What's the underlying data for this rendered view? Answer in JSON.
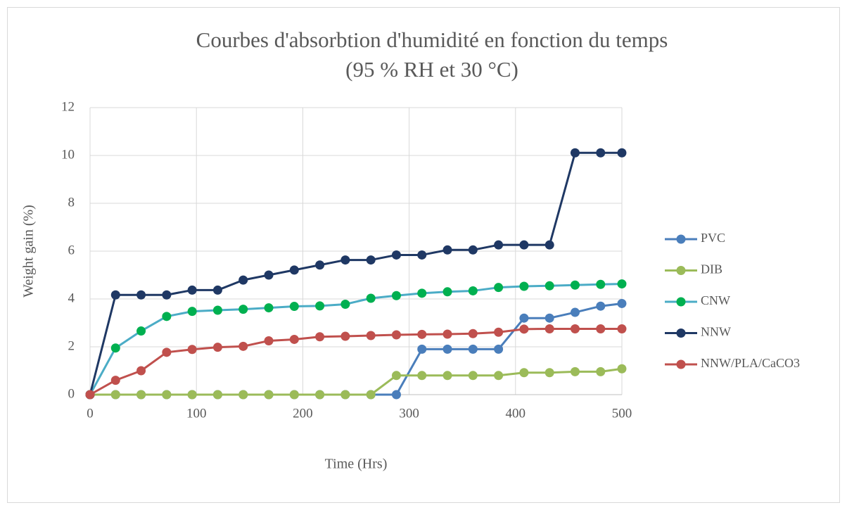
{
  "chart_data": {
    "type": "line",
    "title": [
      "Courbes d'absorbtion d'humidité en fonction du temps",
      "(95 % RH et 30 °C)"
    ],
    "x_label": "Time (Hrs)",
    "y_label": "Weight gain (%)",
    "x": [
      0,
      24,
      48,
      72,
      96,
      120,
      144,
      168,
      192,
      216,
      240,
      264,
      288,
      312,
      336,
      360,
      384,
      408,
      432,
      456,
      480,
      500
    ],
    "series": [
      {
        "name": "PVC",
        "color": "#4a7ebb",
        "marker_color": "#4a7ebb",
        "values": [
          0,
          0,
          0,
          0,
          0,
          0,
          0,
          0,
          0,
          0,
          0,
          0,
          0,
          1.9,
          1.9,
          1.9,
          1.9,
          3.2,
          3.2,
          3.44,
          3.7,
          3.81
        ]
      },
      {
        "name": "DIB",
        "color": "#9bbb59",
        "marker_color": "#9bbb59",
        "values": [
          0,
          0,
          0,
          0,
          0,
          0,
          0,
          0,
          0,
          0,
          0,
          0,
          0.8,
          0.8,
          0.8,
          0.8,
          0.8,
          0.92,
          0.92,
          0.96,
          0.96,
          1.08
        ]
      },
      {
        "name": "CNW",
        "color": "#4bacc6",
        "marker_color": "#00b050",
        "values": [
          0,
          1.95,
          2.66,
          3.27,
          3.48,
          3.53,
          3.57,
          3.63,
          3.69,
          3.71,
          3.78,
          4.03,
          4.14,
          4.24,
          4.3,
          4.34,
          4.48,
          4.53,
          4.55,
          4.58,
          4.61,
          4.63
        ]
      },
      {
        "name": "NNW",
        "color": "#1f3864",
        "marker_color": "#1f3864",
        "values": [
          0,
          4.17,
          4.17,
          4.17,
          4.37,
          4.37,
          4.79,
          5.0,
          5.21,
          5.42,
          5.63,
          5.63,
          5.84,
          5.84,
          6.05,
          6.05,
          6.26,
          6.26,
          6.26,
          10.11,
          10.11,
          10.11
        ]
      },
      {
        "name": "NNW/PLA/CaCO3",
        "color": "#c0504d",
        "marker_color": "#c0504d",
        "values": [
          0,
          0.6,
          1.0,
          1.77,
          1.89,
          1.98,
          2.02,
          2.25,
          2.31,
          2.42,
          2.44,
          2.47,
          2.5,
          2.52,
          2.53,
          2.55,
          2.61,
          2.74,
          2.75,
          2.75,
          2.75,
          2.75
        ]
      }
    ],
    "xlim": [
      0,
      500
    ],
    "xticks": [
      0,
      100,
      200,
      300,
      400,
      500
    ],
    "ylim": [
      0,
      12
    ],
    "yticks": [
      0,
      2,
      4,
      6,
      8,
      10,
      12
    ],
    "grid": true,
    "legend": "right"
  }
}
